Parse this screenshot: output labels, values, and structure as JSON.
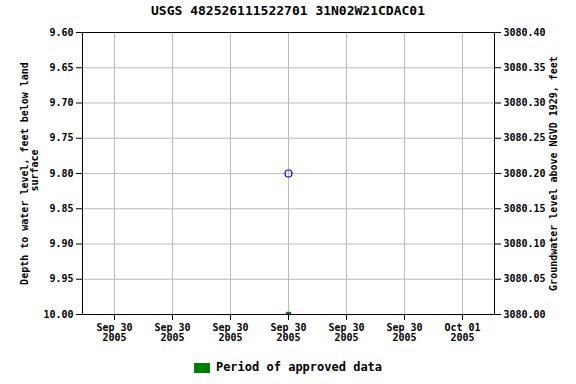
{
  "chart_data": {
    "type": "scatter",
    "title": "USGS 482526111522701 31N02W21CDAC01",
    "y_label": "Depth to water level, feet below land\n surface",
    "y2_label": "Groundwater level above NGVD 1929, feet",
    "categories": [
      "Sep 30\n2005",
      "Sep 30\n2005",
      "Sep 30\n2005",
      "Sep 30\n2005",
      "Sep 30\n2005",
      "Sep 30\n2005",
      "Oct 01\n2005"
    ],
    "series": [
      {
        "color": "blue",
        "marker": "circle",
        "values": [
          null,
          null,
          null,
          9.8,
          null,
          null,
          null
        ]
      },
      {
        "name": "Period of approved data",
        "color": "#008000",
        "marker": "square",
        "values": [
          null,
          null,
          null,
          10.0,
          null,
          null,
          null
        ]
      }
    ],
    "ylim": [
      10.0,
      9.6
    ],
    "yticks": [
      {
        "value": 9.6,
        "label": "9.60"
      },
      {
        "value": 9.65,
        "label": "9.65"
      },
      {
        "value": 9.7,
        "label": "9.70"
      },
      {
        "value": 9.75,
        "label": "9.75"
      },
      {
        "value": 9.8,
        "label": "9.80"
      },
      {
        "value": 9.85,
        "label": "9.85"
      },
      {
        "value": 9.9,
        "label": "9.90"
      },
      {
        "value": 9.95,
        "label": "9.95"
      },
      {
        "value": 10.0,
        "label": "10.00"
      }
    ],
    "y2lim": [
      3080.0,
      3080.4
    ],
    "y2ticks": [
      {
        "value": 3080.4,
        "label": "3080.40"
      },
      {
        "value": 3080.35,
        "label": "3080.35"
      },
      {
        "value": 3080.3,
        "label": "3080.30"
      },
      {
        "value": 3080.25,
        "label": "3080.25"
      },
      {
        "value": 3080.2,
        "label": "3080.20"
      },
      {
        "value": 3080.15,
        "label": "3080.15"
      },
      {
        "value": 3080.1,
        "label": "3080.10"
      },
      {
        "value": 3080.05,
        "label": "3080.05"
      },
      {
        "value": 3080.0,
        "label": "3080.00"
      }
    ],
    "grid": true,
    "legend": "bottom"
  }
}
